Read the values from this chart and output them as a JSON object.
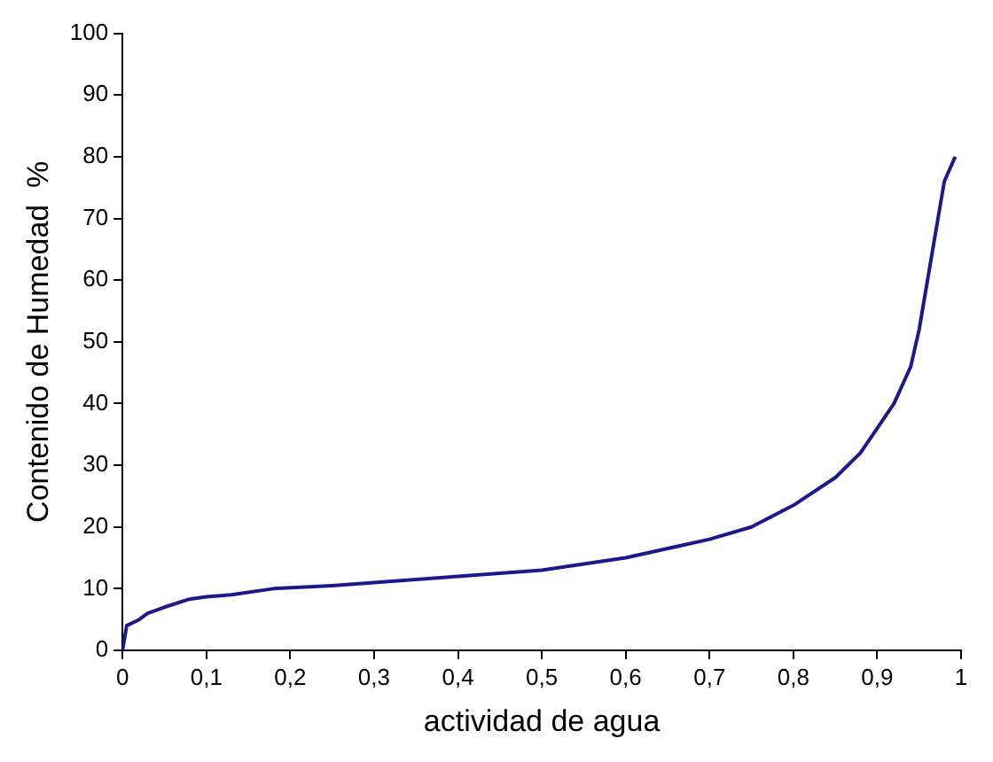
{
  "chart_data": {
    "type": "line",
    "xlabel": "actividad de agua",
    "ylabel": "Contenido de Humedad  %",
    "series": [
      {
        "color": "#1a1a8c",
        "x": [
          0,
          0.005,
          0.02,
          0.03,
          0.05,
          0.08,
          0.1,
          0.13,
          0.18,
          0.25,
          0.3,
          0.4,
          0.5,
          0.6,
          0.7,
          0.75,
          0.8,
          0.85,
          0.88,
          0.9,
          0.92,
          0.94,
          0.95,
          0.96,
          0.97,
          0.98,
          0.993
        ],
        "values": [
          0,
          4,
          5,
          6,
          7,
          8.3,
          8.7,
          9,
          10,
          10.5,
          11,
          12,
          13,
          15,
          18,
          20,
          23.5,
          28,
          32,
          36,
          40,
          46,
          52,
          60,
          68,
          76,
          80
        ]
      }
    ],
    "xlim": [
      0,
      1
    ],
    "xticks": [
      0,
      {
        "value": 0.1,
        "label": "0,1"
      },
      {
        "value": 0.2,
        "label": "0,2"
      },
      {
        "value": 0.3,
        "label": "0,3"
      },
      {
        "value": 0.4,
        "label": "0,4"
      },
      {
        "value": 0.5,
        "label": "0,5"
      },
      {
        "value": 0.6,
        "label": "0,6"
      },
      {
        "value": 0.7,
        "label": "0,7"
      },
      {
        "value": 0.8,
        "label": "0,8"
      },
      {
        "value": 0.9,
        "label": "0,9"
      },
      1
    ],
    "ylim": [
      0,
      100
    ],
    "yticks": [
      0,
      10,
      20,
      30,
      40,
      50,
      60,
      70,
      80,
      90,
      100
    ],
    "grid": false,
    "legend": false,
    "marker": "none",
    "line_style": "solid"
  }
}
